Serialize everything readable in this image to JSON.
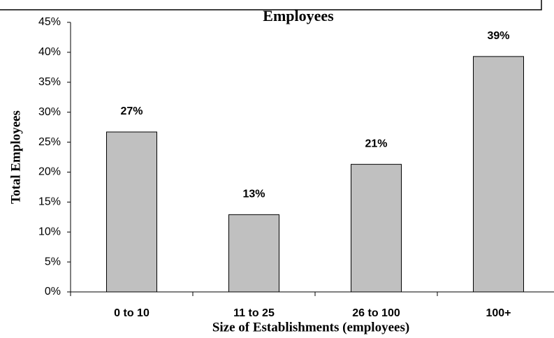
{
  "chart_data": {
    "type": "bar",
    "title": "Employees",
    "xlabel": "Size of Establishments (employees)",
    "ylabel": "Total Employees",
    "categories": [
      "0 to 10",
      "11 to 25",
      "26 to 100",
      "100+"
    ],
    "values": [
      26.7,
      12.9,
      21.3,
      39.3
    ],
    "value_labels": [
      "27%",
      "13%",
      "21%",
      "39%"
    ],
    "color": "#c0c0c0",
    "ylim": [
      0,
      45
    ],
    "yticks": [
      {
        "value": 0,
        "label": "0%"
      },
      {
        "value": 5,
        "label": "5%"
      },
      {
        "value": 10,
        "label": "10%"
      },
      {
        "value": 15,
        "label": "15%"
      },
      {
        "value": 20,
        "label": "20%"
      },
      {
        "value": 25,
        "label": "25%"
      },
      {
        "value": 30,
        "label": "30%"
      },
      {
        "value": 35,
        "label": "35%"
      },
      {
        "value": 40,
        "label": "40%"
      },
      {
        "value": 45,
        "label": "45%"
      }
    ],
    "grid": false
  }
}
